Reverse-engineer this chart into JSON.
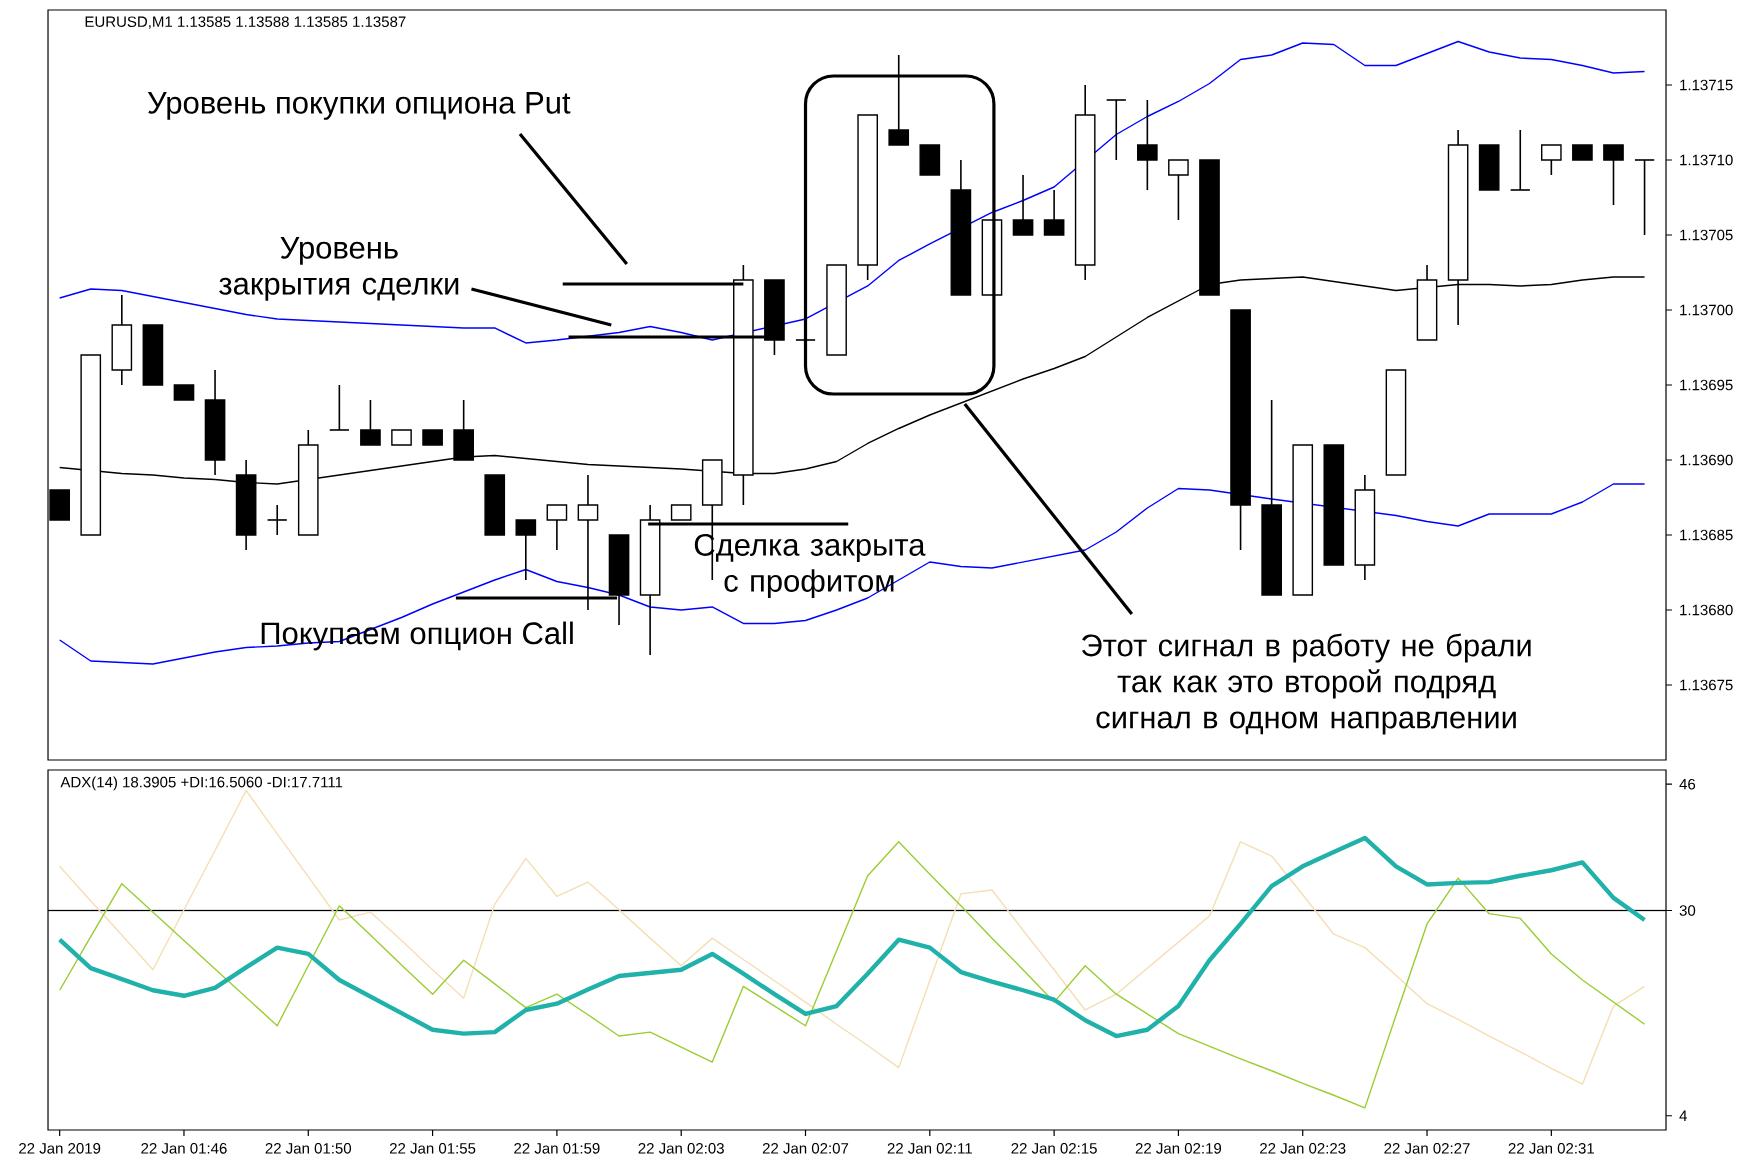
{
  "chart_data": [
    {
      "type": "candlestick",
      "title": "EURUSD,M1 1.13585 1.13588 1.13585 1.13587",
      "categories": [
        null,
        null,
        null,
        null,
        null,
        null,
        null,
        null,
        null,
        null,
        null,
        null,
        null,
        null,
        null,
        null,
        null,
        null,
        null,
        null,
        null,
        null,
        null,
        null,
        null,
        null,
        null,
        null,
        null,
        null,
        null,
        null,
        null,
        null,
        null,
        null,
        null,
        null,
        null,
        null,
        null,
        null,
        null,
        null,
        null,
        null,
        null,
        null,
        null,
        null,
        null,
        null
      ],
      "ohlc": [
        [
          1.13688,
          1.13688,
          1.13686,
          1.13686
        ],
        [
          1.13685,
          1.13697,
          1.13685,
          1.13697
        ],
        [
          1.13696,
          1.13701,
          1.13695,
          1.13699
        ],
        [
          1.13699,
          1.13699,
          1.13695,
          1.13695
        ],
        [
          1.13695,
          1.13695,
          1.13694,
          1.13694
        ],
        [
          1.13694,
          1.13696,
          1.13689,
          1.1369
        ],
        [
          1.13689,
          1.1369,
          1.13684,
          1.13685
        ],
        [
          1.13686,
          1.13687,
          1.13685,
          1.13686
        ],
        [
          1.13685,
          1.13692,
          1.13685,
          1.13691
        ],
        [
          1.13692,
          1.13695,
          1.13692,
          1.13692
        ],
        [
          1.13692,
          1.13694,
          1.13691,
          1.13691
        ],
        [
          1.13691,
          1.13692,
          1.13691,
          1.13692
        ],
        [
          1.13692,
          1.13692,
          1.13691,
          1.13691
        ],
        [
          1.13692,
          1.13694,
          1.1369,
          1.1369
        ],
        [
          1.13689,
          1.13689,
          1.13685,
          1.13685
        ],
        [
          1.13686,
          1.13686,
          1.13682,
          1.13685
        ],
        [
          1.13686,
          1.13687,
          1.13684,
          1.13687
        ],
        [
          1.13686,
          1.13689,
          1.1368,
          1.13687
        ],
        [
          1.13685,
          1.13685,
          1.13679,
          1.13681
        ],
        [
          1.13681,
          1.13687,
          1.13677,
          1.13686
        ],
        [
          1.13686,
          1.13687,
          1.13686,
          1.13687
        ],
        [
          1.13687,
          1.1369,
          1.13682,
          1.1369
        ],
        [
          1.13689,
          1.13703,
          1.13687,
          1.13702
        ],
        [
          1.13702,
          1.13702,
          1.13697,
          1.13698
        ],
        [
          1.13698,
          1.13698,
          1.13698,
          1.13698
        ],
        [
          1.13697,
          1.13703,
          1.13697,
          1.13703
        ],
        [
          1.13703,
          1.13713,
          1.13702,
          1.13713
        ],
        [
          1.13712,
          1.13717,
          1.13711,
          1.13711
        ],
        [
          1.13711,
          1.13711,
          1.13709,
          1.13709
        ],
        [
          1.13708,
          1.1371,
          1.13701,
          1.13701
        ],
        [
          1.13701,
          1.13706,
          1.13701,
          1.13706
        ],
        [
          1.13706,
          1.13709,
          1.13705,
          1.13705
        ],
        [
          1.13706,
          1.13708,
          1.13705,
          1.13705
        ],
        [
          1.13703,
          1.13715,
          1.13702,
          1.13713
        ],
        [
          1.13714,
          1.13714,
          1.1371,
          1.13714
        ],
        [
          1.13711,
          1.13714,
          1.13708,
          1.1371
        ],
        [
          1.13709,
          1.1371,
          1.13706,
          1.1371
        ],
        [
          1.1371,
          1.1371,
          1.13701,
          1.13701
        ],
        [
          1.137,
          1.137,
          1.13684,
          1.13687
        ],
        [
          1.13687,
          1.13694,
          1.13681,
          1.13681
        ],
        [
          1.13681,
          1.13691,
          1.13681,
          1.13691
        ],
        [
          1.13691,
          1.13691,
          1.13683,
          1.13683
        ],
        [
          1.13683,
          1.13689,
          1.13682,
          1.13688
        ],
        [
          1.13689,
          1.13696,
          1.13689,
          1.13696
        ],
        [
          1.13698,
          1.13703,
          1.13698,
          1.13702
        ],
        [
          1.13702,
          1.13712,
          1.13699,
          1.13711
        ],
        [
          1.13711,
          1.13711,
          1.13708,
          1.13708
        ],
        [
          1.13708,
          1.13712,
          1.13708,
          1.13708
        ],
        [
          1.1371,
          1.13711,
          1.13709,
          1.13711
        ],
        [
          1.13711,
          1.13711,
          1.1371,
          1.1371
        ],
        [
          1.13711,
          1.13711,
          1.13707,
          1.1371
        ],
        [
          1.1371,
          1.1371,
          1.13705,
          1.1371
        ]
      ],
      "series": [
        {
          "type": "line",
          "color": "#0000ff",
          "values": [
            1.137008,
            1.137014,
            1.137013,
            1.137009,
            1.137005,
            1.137001,
            1.136997,
            1.136994,
            1.136993,
            1.136992,
            1.136991,
            1.13699,
            1.136989,
            1.136988,
            1.136988,
            1.136978,
            1.13698,
            null,
            1.136985,
            1.136989,
            1.136985,
            1.13698,
            null,
            null,
            1.136994,
            null,
            1.137016,
            1.137033,
            1.137044,
            null,
            1.137065,
            1.137073,
            1.137082,
            null,
            1.137117,
            1.137129,
            1.137139,
            1.137151,
            1.137167,
            1.13717,
            1.137178,
            1.137177,
            1.137163,
            1.137163,
            1.137171,
            1.137179,
            1.137172,
            1.137168,
            1.137167,
            1.137163,
            1.137158,
            1.137159
          ]
        },
        {
          "type": "line",
          "color": "#000000",
          "values": [
            1.136895,
            null,
            1.136891,
            1.13689,
            1.136888,
            1.136887,
            1.136885,
            1.136884,
            null,
            1.13689,
            1.136893,
            1.136896,
            1.136899,
            1.136902,
            1.136903,
            1.136901,
            1.136899,
            1.136897,
            1.136896,
            1.136895,
            1.136894,
            null,
            1.136891,
            1.136891,
            1.136894,
            1.136899,
            1.136911,
            1.136921,
            1.13693,
            1.136938,
            1.136946,
            1.136954,
            1.136961,
            1.136969,
            1.136982,
            1.136995,
            1.137006,
            1.137017,
            1.13702,
            1.137021,
            1.137022,
            1.137019,
            1.137016,
            1.137013,
            1.137015,
            1.137017,
            1.137017,
            1.137016,
            1.137017,
            1.13702,
            1.137022,
            1.137022
          ]
        },
        {
          "type": "line",
          "color": "#0000ff",
          "values": [
            1.13678,
            1.136766,
            1.136765,
            1.136764,
            1.136768,
            1.136772,
            1.136775,
            1.136776,
            1.136778,
            1.136779,
            1.136787,
            1.136795,
            1.136804,
            1.136812,
            1.13682,
            1.136827,
            1.136819,
            1.136815,
            1.13681,
            1.136802,
            1.1368,
            1.136802,
            1.136791,
            1.136791,
            1.136793,
            1.1368,
            1.136808,
            1.13682,
            1.136832,
            1.136829,
            1.136828,
            1.136832,
            1.136836,
            1.13684,
            1.136852,
            1.136868,
            1.136881,
            1.13688,
            null,
            1.136874,
            null,
            null,
            null,
            1.136863,
            1.136859,
            1.136856,
            1.136864,
            1.136864,
            1.136864,
            1.136872,
            1.136884,
            1.136884
          ]
        }
      ],
      "ylim": [
        1.1367,
        1.1372
      ],
      "yticks": [
        {
          "value": 1.13675,
          "label": "1.13675"
        },
        {
          "value": 1.1368,
          "label": "1.13680"
        },
        {
          "value": 1.13685,
          "label": "1.13685"
        },
        {
          "value": 1.1369,
          "label": "1.13690"
        },
        {
          "value": 1.13695,
          "label": "1.13695"
        },
        {
          "value": 1.137,
          "label": "1.13700"
        },
        {
          "value": 1.13705,
          "label": "1.13705"
        },
        {
          "value": 1.1371,
          "label": "1.13710"
        },
        {
          "value": 1.13715,
          "label": "1.13715"
        }
      ],
      "annotations": [
        "Уровень покупки опциона Put",
        {
          "text": "Уровень закрытия сделки",
          "y": 1.13699
        },
        "Покупаем опцион Call",
        "Сделка закрыта с профитом",
        "Этот сигнал в работу не брали так как это второй подряд сигнал в одном направлении"
      ]
    },
    {
      "type": "line",
      "title": "ADX(14) 18.3905 +DI:16.5060 -DI:17.7111",
      "categories": [
        "22 Jan 2019",
        null,
        null,
        null,
        "22 Jan 01:46",
        null,
        null,
        null,
        "22 Jan 01:50",
        null,
        null,
        null,
        "22 Jan 01:55",
        null,
        null,
        null,
        "22 Jan 01:59",
        null,
        null,
        null,
        "22 Jan 02:03",
        null,
        null,
        null,
        "22 Jan 02:07",
        null,
        null,
        null,
        "22 Jan 02:11",
        null,
        null,
        null,
        "22 Jan 02:15",
        null,
        null,
        null,
        "22 Jan 02:19",
        null,
        null,
        null,
        "22 Jan 02:23",
        null,
        null,
        null,
        "22 Jan 02:27",
        null,
        null,
        null,
        "22 Jan 02:31",
        null,
        null,
        null
      ],
      "series": [
        {
          "color": "#20b2aa",
          "values": [
            26.3,
            22.7,
            21.3,
            19.9,
            19.2,
            20.2,
            22.8,
            25.3,
            24.5,
            21.2,
            19.1,
            17.0,
            14.9,
            14.4,
            14.6,
            17.4,
            18.2,
            20.0,
            21.7,
            22.1,
            22.5,
            24.5,
            22.0,
            19.4,
            16.9,
            17.9,
            22.0,
            26.3,
            25.3,
            22.2,
            21.0,
            19.9,
            18.7,
            16.1,
            14.1,
            14.9,
            17.9,
            23.7,
            28.3,
            33.1,
            35.6,
            37.4,
            39.2,
            35.6,
            33.3,
            33.5,
            33.6,
            34.4,
            35.1,
            36.1,
            31.6,
            28.8
          ]
        },
        {
          "color": "#9acd32",
          "values": [
            19.9,
            26.7,
            33.4,
            29.8,
            26.2,
            22.6,
            19.0,
            15.4,
            23.0,
            30.6,
            26.9,
            23.1,
            19.4,
            23.7,
            20.7,
            17.7,
            19.4,
            16.8,
            14.1,
            14.6,
            12.7,
            10.8,
            20.4,
            17.9,
            15.4,
            24.9,
            34.4,
            38.7,
            34.6,
            30.6,
            26.5,
            22.5,
            18.4,
            23.0,
            19.4,
            16.9,
            14.4,
            12.8,
            11.2,
            9.7,
            8.1,
            6.6,
            5.0,
            16.7,
            28.3,
            34.1,
            29.6,
            29.0,
            24.5,
            21.2,
            18.4,
            15.6
          ]
        },
        {
          "color": "#f5deb3",
          "values": [
            35.6,
            31.2,
            26.9,
            22.5,
            30.1,
            37.6,
            45.2,
            39.7,
            34.3,
            28.8,
            29.8,
            26.2,
            22.5,
            18.9,
            30.8,
            36.6,
            31.8,
            33.6,
            30.1,
            26.5,
            23.0,
            26.5,
            23.8,
            21.1,
            18.4,
            15.6,
            12.9,
            10.1,
            21.1,
            32.1,
            32.6,
            27.5,
            22.5,
            17.4,
            19.4,
            22.7,
            26.0,
            29.3,
            38.7,
            36.9,
            32.0,
            27.0,
            25.3,
            21.8,
            18.2,
            16.2,
            14.1,
            12.1,
            10.0,
            8.0,
            17.9,
            20.4
          ]
        }
      ],
      "ylim": [
        2.2,
        47.8
      ],
      "yticks": [
        4,
        30,
        46
      ],
      "ref_lines": [
        {
          "axis": "y",
          "value": 30
        }
      ]
    }
  ]
}
